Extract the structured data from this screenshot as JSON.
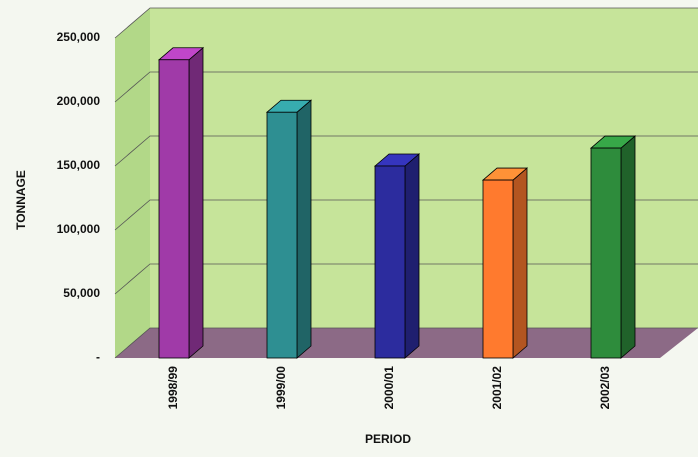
{
  "chart_data": {
    "type": "bar3d",
    "categories": [
      "1998/99",
      "1999/00",
      "2000/01",
      "2001/02",
      "2002/03"
    ],
    "values": [
      233000,
      192000,
      150000,
      139000,
      164000
    ],
    "colors": [
      "#a03aa8",
      "#2e8f92",
      "#2c2c9e",
      "#ff7a2e",
      "#2e8c3c"
    ],
    "ylim": [
      0,
      250000
    ],
    "yticks": [
      {
        "value": 0,
        "label": "-"
      },
      {
        "value": 50000,
        "label": "50,000"
      },
      {
        "value": 100000,
        "label": "100,000"
      },
      {
        "value": 150000,
        "label": "150,000"
      },
      {
        "value": 200000,
        "label": "200,000"
      },
      {
        "value": 250000,
        "label": "250,000"
      }
    ],
    "ylabel": "TONNAGE",
    "xlabel": "PERIOD",
    "grid": true
  }
}
